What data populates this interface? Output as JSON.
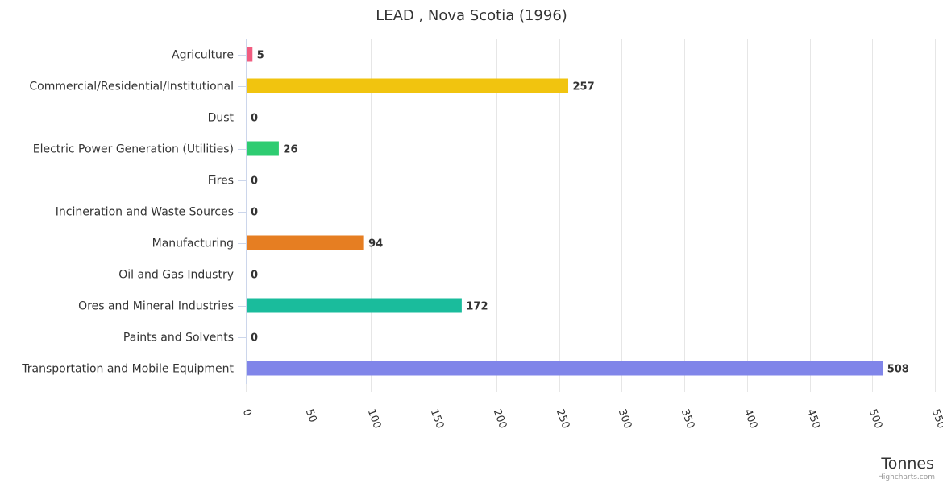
{
  "chart_data": {
    "type": "bar",
    "orientation": "horizontal",
    "title": "LEAD , Nova Scotia (1996)",
    "xlabel": "",
    "ylabel": "Tonnes",
    "categories": [
      "Agriculture",
      "Commercial/Residential/Institutional",
      "Dust",
      "Electric Power Generation (Utilities)",
      "Fires",
      "Incineration and Waste Sources",
      "Manufacturing",
      "Oil and Gas Industry",
      "Ores and Mineral Industries",
      "Paints and Solvents",
      "Transportation and Mobile Equipment"
    ],
    "values": [
      5,
      257,
      0,
      26,
      0,
      0,
      94,
      0,
      172,
      0,
      508
    ],
    "colors": [
      "#f15c80",
      "#f1c40f",
      "#2b908f",
      "#2ecc71",
      "#f7a35c",
      "#8085e9",
      "#e67e22",
      "#434348",
      "#1abc9c",
      "#90ed7d",
      "#8085e9"
    ],
    "value_axis": {
      "min": 0,
      "max": 550,
      "ticks": [
        0,
        50,
        100,
        150,
        200,
        250,
        300,
        350,
        400,
        450,
        500,
        550
      ],
      "grid": true
    },
    "legend": "none",
    "credits": "Highcharts.com"
  }
}
